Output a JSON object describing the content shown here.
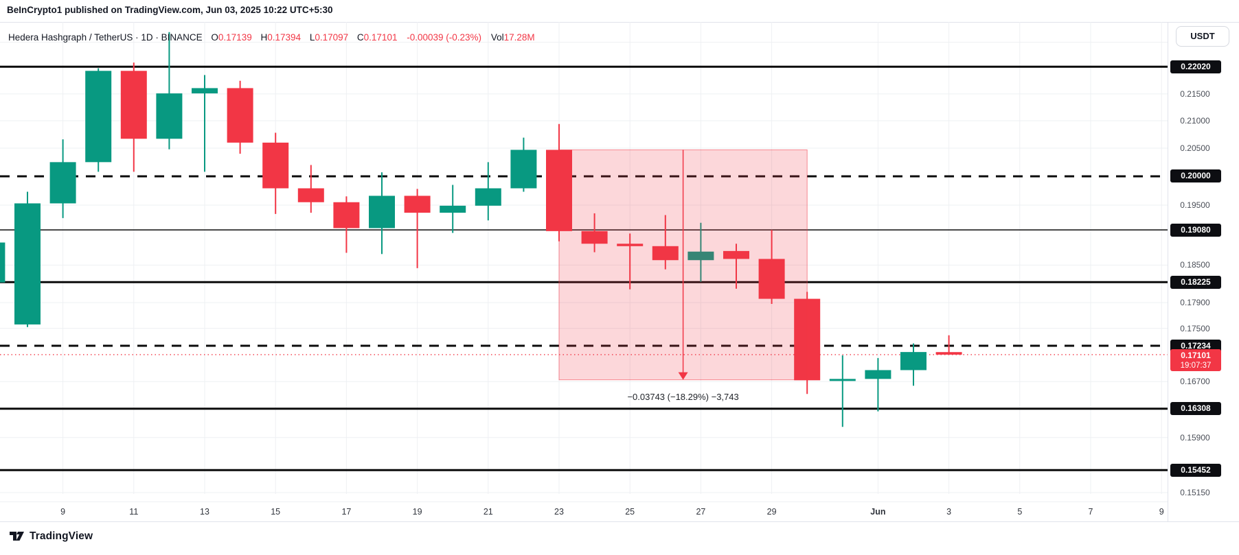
{
  "header": {
    "published": "BeInCrypto1 published on TradingView.com, Jun 03, 2025 10:22 UTC+5:30"
  },
  "legend": {
    "title": "Hedera Hashgraph / TetherUS · 1D · BINANCE",
    "o_label": "O",
    "o": "0.17139",
    "h_label": "H",
    "h": "0.17394",
    "l_label": "L",
    "l": "0.17097",
    "c_label": "C",
    "c": "0.17101",
    "change": "-0.00039 (-0.23%)",
    "vol_label": "Vol",
    "vol": "17.28M"
  },
  "price_axis": {
    "currency_button": "USDT",
    "ticks": [
      {
        "label": "0.21500",
        "price": 0.215
      },
      {
        "label": "0.21000",
        "price": 0.21
      },
      {
        "label": "0.20500",
        "price": 0.205
      },
      {
        "label": "0.19500",
        "price": 0.195
      },
      {
        "label": "0.18500",
        "price": 0.185
      },
      {
        "label": "0.17900",
        "price": 0.179
      },
      {
        "label": "0.17500",
        "price": 0.175
      },
      {
        "label": "0.16700",
        "price": 0.167
      },
      {
        "label": "0.15900",
        "price": 0.159
      },
      {
        "label": "0.15150",
        "price": 0.1515
      }
    ],
    "level_badges": [
      {
        "label": "0.22020",
        "price": 0.2202
      },
      {
        "label": "0.20000",
        "price": 0.2
      },
      {
        "label": "0.19080",
        "price": 0.1908
      },
      {
        "label": "0.18225",
        "price": 0.18225
      },
      {
        "label": "0.17234",
        "price": 0.17234
      },
      {
        "label": "0.16308",
        "price": 0.16308
      },
      {
        "label": "0.15452",
        "price": 0.15452
      }
    ],
    "current": {
      "label": "0.17101",
      "countdown": "19:07:37",
      "price": 0.17101
    }
  },
  "time_axis": [
    {
      "label": "9",
      "i": 2
    },
    {
      "label": "11",
      "i": 4
    },
    {
      "label": "13",
      "i": 6
    },
    {
      "label": "15",
      "i": 8
    },
    {
      "label": "17",
      "i": 10
    },
    {
      "label": "19",
      "i": 12
    },
    {
      "label": "21",
      "i": 14
    },
    {
      "label": "23",
      "i": 16
    },
    {
      "label": "25",
      "i": 18
    },
    {
      "label": "27",
      "i": 20
    },
    {
      "label": "29",
      "i": 22
    },
    {
      "label": "Jun",
      "i": 25,
      "bold": true
    },
    {
      "label": "3",
      "i": 27
    },
    {
      "label": "5",
      "i": 29
    },
    {
      "label": "7",
      "i": 31
    },
    {
      "label": "9",
      "i": 33
    }
  ],
  "measure_tool": {
    "label": "−0.03743 (−18.29%) −3,743",
    "from_candle": 16,
    "to_candle": 23,
    "top_price": 0.2047,
    "bottom_price": 0.16727
  },
  "levels": [
    {
      "price": 0.2202,
      "style": "solid",
      "w": 3
    },
    {
      "price": 0.2,
      "style": "dashed",
      "w": 3
    },
    {
      "price": 0.1908,
      "style": "solid",
      "w": 1.5
    },
    {
      "price": 0.18225,
      "style": "solid",
      "w": 3
    },
    {
      "price": 0.17234,
      "style": "dashed",
      "w": 3
    },
    {
      "price": 0.16308,
      "style": "solid",
      "w": 3
    },
    {
      "price": 0.15452,
      "style": "solid",
      "w": 3
    }
  ],
  "grid_prices": [
    0.225,
    0.215,
    0.21,
    0.205,
    0.195,
    0.185,
    0.179,
    0.175,
    0.167,
    0.159,
    0.1515
  ],
  "chart_data": {
    "type": "candlestick",
    "symbol": "Hedera Hashgraph / TetherUS",
    "interval": "1D",
    "exchange": "BINANCE",
    "scale": "logarithmic",
    "ylim": [
      0.1515,
      0.225
    ],
    "grid": true,
    "candles": [
      {
        "d": "May 7",
        "o": 0.1822,
        "h": 0.1887,
        "l": 0.1822,
        "c": 0.1887
      },
      {
        "d": "May 8",
        "o": 0.1756,
        "h": 0.1973,
        "l": 0.1752,
        "c": 0.1953
      },
      {
        "d": "May 9",
        "o": 0.1953,
        "h": 0.2066,
        "l": 0.1928,
        "c": 0.2025
      },
      {
        "d": "May 10",
        "o": 0.2025,
        "h": 0.2199,
        "l": 0.2008,
        "c": 0.2194
      },
      {
        "d": "May 11",
        "o": 0.2194,
        "h": 0.221,
        "l": 0.2008,
        "c": 0.2067
      },
      {
        "d": "May 12",
        "o": 0.2067,
        "h": 0.227,
        "l": 0.2048,
        "c": 0.2151
      },
      {
        "d": "May 13",
        "o": 0.2151,
        "h": 0.2186,
        "l": 0.2008,
        "c": 0.2161
      },
      {
        "d": "May 14",
        "o": 0.2161,
        "h": 0.2175,
        "l": 0.204,
        "c": 0.206
      },
      {
        "d": "May 15",
        "o": 0.206,
        "h": 0.2078,
        "l": 0.1935,
        "c": 0.1979
      },
      {
        "d": "May 16",
        "o": 0.1979,
        "h": 0.202,
        "l": 0.1937,
        "c": 0.1955
      },
      {
        "d": "May 17",
        "o": 0.1955,
        "h": 0.1965,
        "l": 0.187,
        "c": 0.1911
      },
      {
        "d": "May 18",
        "o": 0.1911,
        "h": 0.2007,
        "l": 0.1868,
        "c": 0.1966
      },
      {
        "d": "May 19",
        "o": 0.1966,
        "h": 0.1978,
        "l": 0.1845,
        "c": 0.1937
      },
      {
        "d": "May 20",
        "o": 0.1937,
        "h": 0.1985,
        "l": 0.1903,
        "c": 0.1949
      },
      {
        "d": "May 21",
        "o": 0.1949,
        "h": 0.2025,
        "l": 0.1924,
        "c": 0.1979
      },
      {
        "d": "May 22",
        "o": 0.1979,
        "h": 0.2069,
        "l": 0.1973,
        "c": 0.2047
      },
      {
        "d": "May 23",
        "o": 0.2047,
        "h": 0.2094,
        "l": 0.1889,
        "c": 0.1906
      },
      {
        "d": "May 24",
        "o": 0.1906,
        "h": 0.1936,
        "l": 0.1871,
        "c": 0.1885
      },
      {
        "d": "May 25",
        "o": 0.1885,
        "h": 0.1902,
        "l": 0.1811,
        "c": 0.1881
      },
      {
        "d": "May 26",
        "o": 0.1881,
        "h": 0.1933,
        "l": 0.1843,
        "c": 0.1858
      },
      {
        "d": "May 27",
        "o": 0.1858,
        "h": 0.192,
        "l": 0.1823,
        "c": 0.1872
      },
      {
        "d": "May 28",
        "o": 0.1873,
        "h": 0.1885,
        "l": 0.1812,
        "c": 0.186
      },
      {
        "d": "May 29",
        "o": 0.186,
        "h": 0.1908,
        "l": 0.1788,
        "c": 0.1796
      },
      {
        "d": "May 30",
        "o": 0.1796,
        "h": 0.1807,
        "l": 0.1652,
        "c": 0.1672
      },
      {
        "d": "May 31",
        "o": 0.1671,
        "h": 0.1709,
        "l": 0.1605,
        "c": 0.1674
      },
      {
        "d": "Jun 1",
        "o": 0.1674,
        "h": 0.1705,
        "l": 0.1627,
        "c": 0.1687
      },
      {
        "d": "Jun 2",
        "o": 0.1687,
        "h": 0.1727,
        "l": 0.1664,
        "c": 0.1714
      },
      {
        "d": "Jun 3",
        "o": 0.17139,
        "h": 0.17394,
        "l": 0.17097,
        "c": 0.17101
      }
    ]
  },
  "footer": {
    "brand": "TradingView"
  },
  "colors": {
    "up": "#089981",
    "down": "#f23645",
    "level_line": "#0b0b0b",
    "grid": "#eef0f3",
    "box_fill": "rgba(242,54,69,0.2)",
    "box_border": "rgba(242,54,69,0.55)",
    "badge_bg": "#0d0e12",
    "current_badge_bg": "#f23645"
  }
}
